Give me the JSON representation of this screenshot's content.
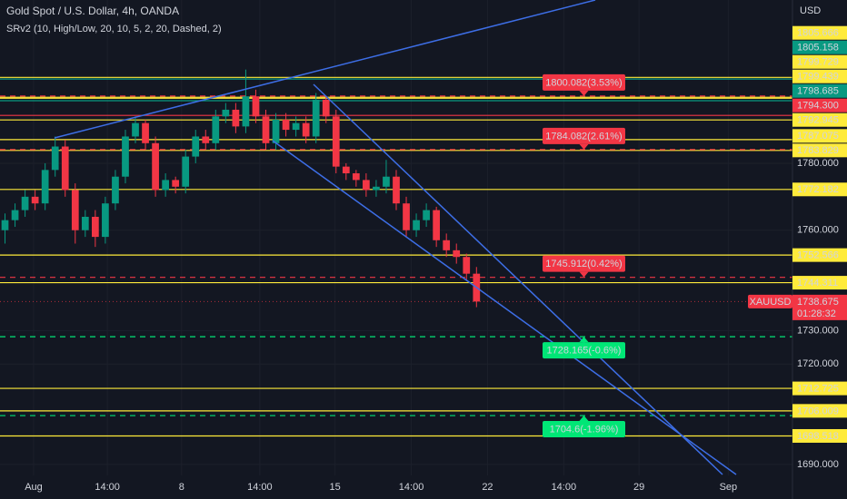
{
  "chart_data": {
    "type": "candlestick",
    "title": "Gold Spot / U.S. Dollar, 4h, OANDA",
    "indicator": "SRv2 (10, High/Low, 20, 10, 5, 2, 20, Dashed, 2)",
    "currency": "USD",
    "open": [
      1760,
      1763,
      1766,
      1770,
      1768,
      1778,
      1785,
      1772,
      1760,
      1764,
      1758,
      1768,
      1776,
      1788,
      1792,
      1786,
      1772,
      1775,
      1773,
      1782,
      1788,
      1786,
      1794,
      1796,
      1791,
      1800,
      1794,
      1786,
      1793,
      1790,
      1792,
      1788,
      1799,
      1794,
      1779,
      1777,
      1775,
      1772,
      1773,
      1776,
      1768,
      1760,
      1763,
      1766,
      1757,
      1754,
      1752,
      1747
    ],
    "high": [
      1765,
      1768,
      1772,
      1772,
      1780,
      1788,
      1787,
      1774,
      1766,
      1766,
      1770,
      1778,
      1790,
      1794,
      1793,
      1788,
      1777,
      1776,
      1784,
      1790,
      1790,
      1796,
      1798,
      1798,
      1808,
      1802,
      1796,
      1795,
      1795,
      1794,
      1794,
      1801,
      1800,
      1796,
      1780,
      1778,
      1777,
      1775,
      1781,
      1778,
      1770,
      1765,
      1768,
      1767,
      1759,
      1756,
      1753,
      1749
    ],
    "low": [
      1756,
      1761,
      1764,
      1766,
      1766,
      1776,
      1770,
      1756,
      1758,
      1755,
      1756,
      1766,
      1774,
      1786,
      1784,
      1770,
      1770,
      1771,
      1771,
      1780,
      1784,
      1784,
      1792,
      1789,
      1789,
      1792,
      1784,
      1784,
      1788,
      1788,
      1786,
      1786,
      1792,
      1777,
      1775,
      1773,
      1770,
      1770,
      1771,
      1766,
      1758,
      1758,
      1761,
      1755,
      1752,
      1750,
      1745,
      1737
    ],
    "close": [
      1763,
      1766,
      1770,
      1768,
      1778,
      1785,
      1772,
      1760,
      1764,
      1758,
      1768,
      1776,
      1788,
      1792,
      1786,
      1772,
      1775,
      1773,
      1782,
      1788,
      1786,
      1794,
      1796,
      1791,
      1800,
      1794,
      1786,
      1793,
      1790,
      1792,
      1788,
      1799,
      1794,
      1779,
      1777,
      1775,
      1772,
      1773,
      1776,
      1768,
      1760,
      1763,
      1766,
      1757,
      1754,
      1752,
      1747,
      1738.675
    ],
    "up_color": "#089981",
    "down_color": "#f23645",
    "xlim": [
      -0.5,
      78.5
    ],
    "xticks": [
      {
        "value": 2.85,
        "label": "Aug"
      },
      {
        "value": 10.2,
        "label": "14:00"
      },
      {
        "value": 17.6,
        "label": "8"
      },
      {
        "value": 25.4,
        "label": "14:00"
      },
      {
        "value": 32.9,
        "label": "15"
      },
      {
        "value": 40.5,
        "label": "14:00"
      },
      {
        "value": 48.1,
        "label": "22"
      },
      {
        "value": 55.7,
        "label": "14:00"
      },
      {
        "value": 63.2,
        "label": "29"
      },
      {
        "value": 72.1,
        "label": "Sep"
      }
    ],
    "ylim": [
      1679.67,
      1828.79
    ],
    "yticks": [
      {
        "value": 1780,
        "label": "1780.000"
      },
      {
        "value": 1760,
        "label": "1760.000"
      },
      {
        "value": 1730,
        "label": "1730.000"
      },
      {
        "value": 1720,
        "label": "1720.000"
      },
      {
        "value": 1690,
        "label": "1690.000"
      }
    ],
    "levels": [
      {
        "value": 1805.666,
        "color": "#ffeb3b"
      },
      {
        "value": 1805.158,
        "color": "#089981"
      },
      {
        "value": 1799.729,
        "color": "#ffeb3b"
      },
      {
        "value": 1799.439,
        "color": "#ffeb3b"
      },
      {
        "value": 1798.685,
        "color": "#089981"
      },
      {
        "value": 1794.3,
        "label": "1794.300",
        "color": "#f23645"
      },
      {
        "value": 1792.945,
        "color": "#ffeb3b"
      },
      {
        "value": 1787.075,
        "color": "#ffeb3b"
      },
      {
        "value": 1783.829,
        "color": "#ffeb3b"
      },
      {
        "value": 1772.182,
        "color": "#ffeb3b"
      },
      {
        "value": 1752.566,
        "color": "#ffeb3b"
      },
      {
        "value": 1744.311,
        "color": "#ffeb3b"
      },
      {
        "value": 1712.725,
        "color": "#ffeb3b"
      },
      {
        "value": 1706.009,
        "color": "#ffeb3b"
      },
      {
        "value": 1698.518,
        "color": "#ffeb3b"
      }
    ],
    "zones": [
      {
        "value": 1800.082,
        "label": "1800.082(3.53%)",
        "color": "#f23645"
      },
      {
        "value": 1784.082,
        "label": "1784.082(2.61%)",
        "color": "#f23645"
      },
      {
        "value": 1745.912,
        "label": "1745.912(0.42%)",
        "color": "#f23645"
      },
      {
        "value": 1728.165,
        "label": "1728.165(-0.6%)",
        "color": "#00e676"
      },
      {
        "value": 1704.6,
        "label": "1704.6(-1.96%)",
        "color": "#00e676"
      }
    ],
    "last": {
      "symbol": "XAUUSD",
      "value": 1738.675,
      "countdown": "01:28:32",
      "color": "#f23645"
    }
  }
}
